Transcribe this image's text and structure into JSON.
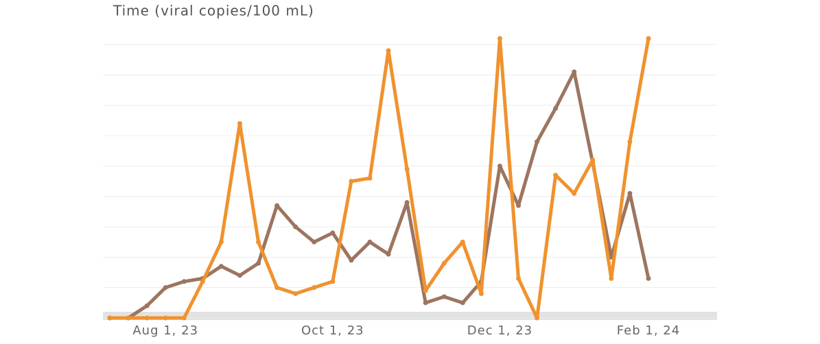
{
  "chart_data": {
    "type": "line",
    "title": "Time (viral copies/100 mL)",
    "categories": [
      null,
      null,
      null,
      "Aug 1, 23",
      null,
      null,
      null,
      null,
      null,
      null,
      null,
      null,
      "Oct 1, 23",
      null,
      null,
      null,
      null,
      null,
      null,
      null,
      null,
      "Dec 1, 23",
      null,
      null,
      null,
      null,
      null,
      null,
      null,
      "Feb 1, 24"
    ],
    "series": [
      {
        "color": "#9c7560",
        "values": [
          0,
          0,
          0.4,
          1.0,
          1.2,
          1.3,
          1.7,
          1.4,
          1.8,
          3.7,
          3.0,
          2.5,
          2.8,
          1.9,
          2.5,
          2.1,
          3.8,
          0.5,
          0.7,
          0.5,
          1.2,
          5.0,
          3.7,
          5.8,
          6.9,
          8.1,
          5.1,
          2.0,
          4.1,
          1.3
        ]
      },
      {
        "color": "#f0922e",
        "values": [
          0,
          0,
          0,
          0,
          0,
          1.2,
          2.5,
          6.4,
          2.5,
          1.0,
          0.8,
          1.0,
          1.2,
          4.5,
          4.6,
          8.8,
          4.9,
          0.9,
          1.8,
          2.5,
          0.8,
          9.2,
          1.3,
          0,
          4.7,
          4.1,
          5.2,
          1.3,
          5.8,
          9.2
        ]
      }
    ],
    "ylim": [
      0,
      9
    ],
    "yticks": [
      0,
      1,
      2,
      3,
      4,
      5,
      6,
      7,
      8,
      9
    ],
    "grid": true
  }
}
